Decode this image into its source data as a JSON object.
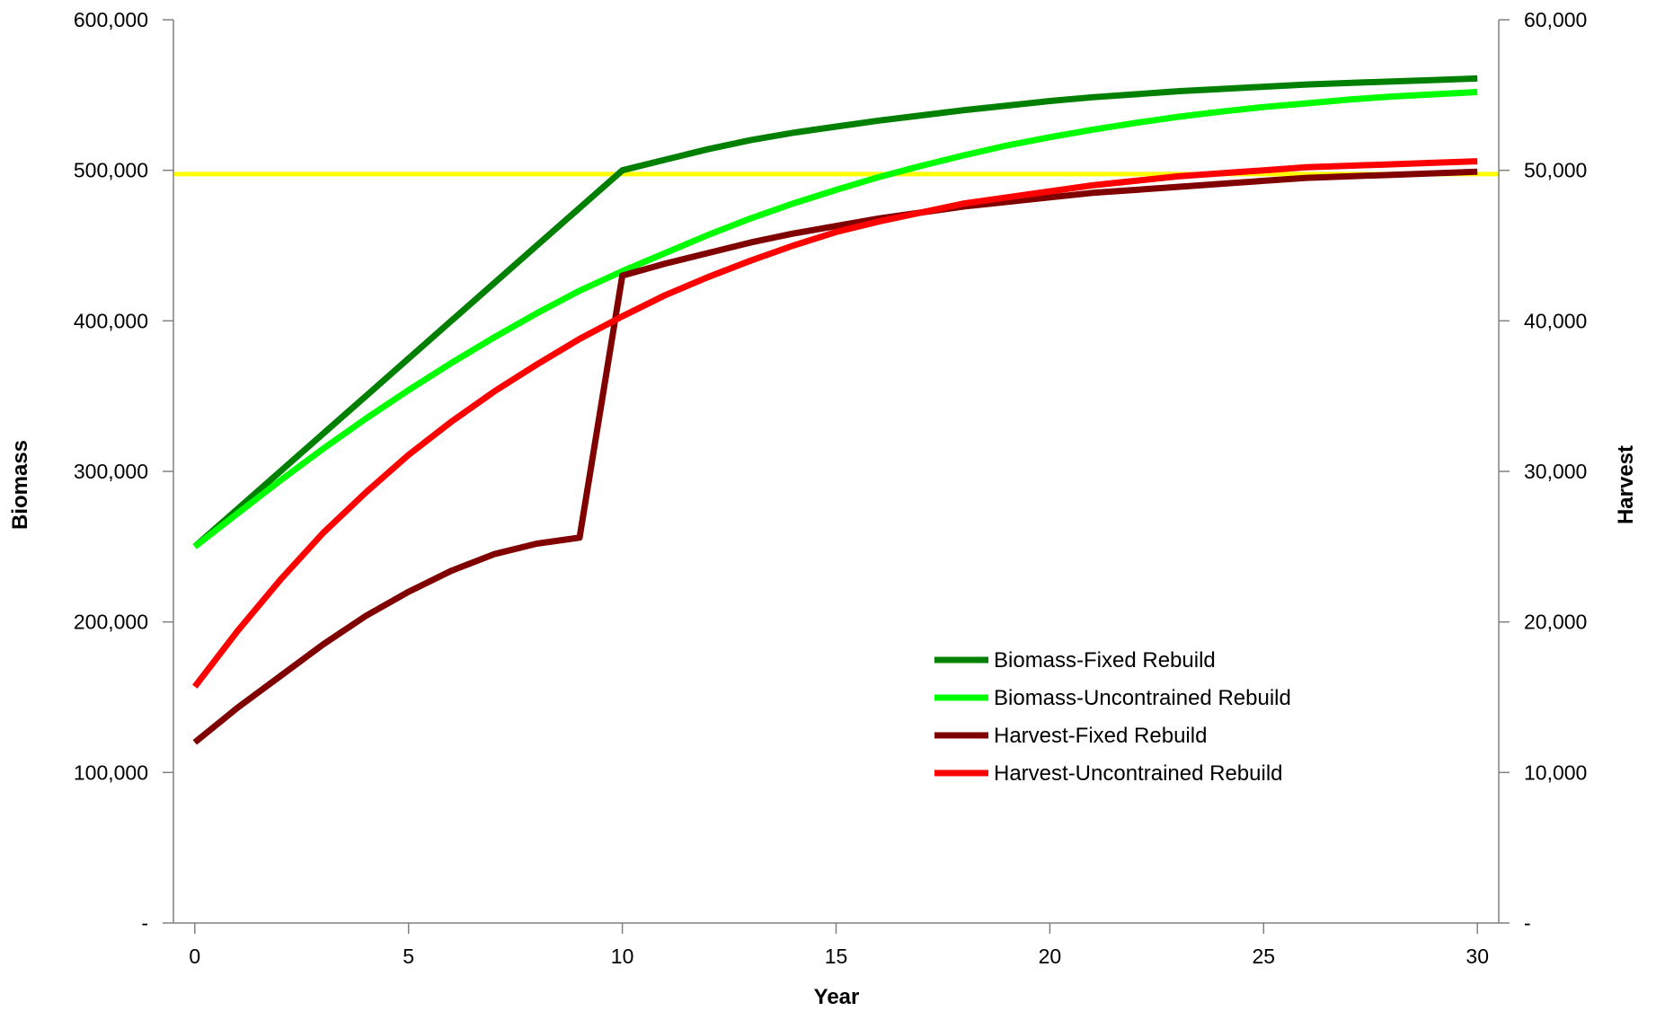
{
  "chart_data": {
    "type": "line",
    "title": "",
    "xlabel": "Year",
    "ylabel_left": "Biomass",
    "ylabel_right": "Harvest",
    "xlim": [
      -0.5,
      30.5
    ],
    "ylim_left": [
      0,
      600000
    ],
    "ylim_right": [
      0,
      60000
    ],
    "x_ticks": [
      0,
      5,
      10,
      15,
      20,
      25,
      30
    ],
    "x_tick_labels": [
      "0",
      "5",
      "10",
      "15",
      "20",
      "25",
      "30"
    ],
    "left_ticks": [
      0,
      100000,
      200000,
      300000,
      400000,
      500000,
      600000
    ],
    "left_tick_labels": [
      "-",
      "100,000",
      "200,000",
      "300,000",
      "400,000",
      "500,000",
      "600,000"
    ],
    "right_ticks": [
      0,
      10000,
      20000,
      30000,
      40000,
      50000,
      60000
    ],
    "right_tick_labels": [
      "-",
      "10,000",
      "20,000",
      "30,000",
      "40,000",
      "50,000",
      "60,000"
    ],
    "grid": false,
    "legend_position": "lower-right",
    "x": [
      0,
      1,
      2,
      3,
      4,
      5,
      6,
      7,
      8,
      9,
      10,
      11,
      12,
      13,
      14,
      15,
      16,
      17,
      18,
      19,
      20,
      21,
      22,
      23,
      24,
      25,
      26,
      27,
      28,
      29,
      30
    ],
    "series": [
      {
        "name": "Biomass-Fixed Rebuild",
        "axis": "left",
        "color": "#008000",
        "values": [
          250000,
          275000,
          300000,
          325000,
          350000,
          375000,
          400000,
          425000,
          450000,
          475000,
          500000,
          507000,
          514000,
          520000,
          525000,
          529000,
          533000,
          536500,
          540000,
          543000,
          546000,
          548500,
          550500,
          552500,
          554000,
          555500,
          557000,
          558000,
          559000,
          560000,
          561000
        ]
      },
      {
        "name": "Biomass-Uncontrained Rebuild",
        "axis": "left",
        "color": "#00ff00",
        "values": [
          250000,
          272000,
          294000,
          315000,
          335000,
          354000,
          372000,
          389000,
          405000,
          420000,
          433000,
          445000,
          457000,
          468000,
          478000,
          487000,
          495500,
          503000,
          510000,
          516500,
          522000,
          527000,
          531500,
          535500,
          539000,
          542000,
          544500,
          547000,
          549000,
          550500,
          552000
        ]
      },
      {
        "name": "Harvest-Fixed Rebuild",
        "axis": "right",
        "color": "#800000",
        "values": [
          12000,
          14300,
          16400,
          18500,
          20400,
          22000,
          23400,
          24500,
          25200,
          25600,
          43000,
          43800,
          44500,
          45200,
          45800,
          46300,
          46800,
          47200,
          47600,
          47900,
          48200,
          48500,
          48700,
          48900,
          49100,
          49300,
          49500,
          49600,
          49700,
          49800,
          49900
        ]
      },
      {
        "name": "Harvest-Uncontrained Rebuild",
        "axis": "right",
        "color": "#ff0000",
        "values": [
          15700,
          19400,
          22800,
          25900,
          28600,
          31100,
          33300,
          35300,
          37100,
          38800,
          40300,
          41700,
          42900,
          44000,
          45000,
          45900,
          46600,
          47200,
          47800,
          48200,
          48600,
          49000,
          49300,
          49600,
          49800,
          50000,
          50200,
          50300,
          50400,
          50500,
          50600
        ]
      }
    ],
    "reference_line": {
      "axis": "left",
      "value": 497500,
      "color": "#ffff00"
    }
  }
}
